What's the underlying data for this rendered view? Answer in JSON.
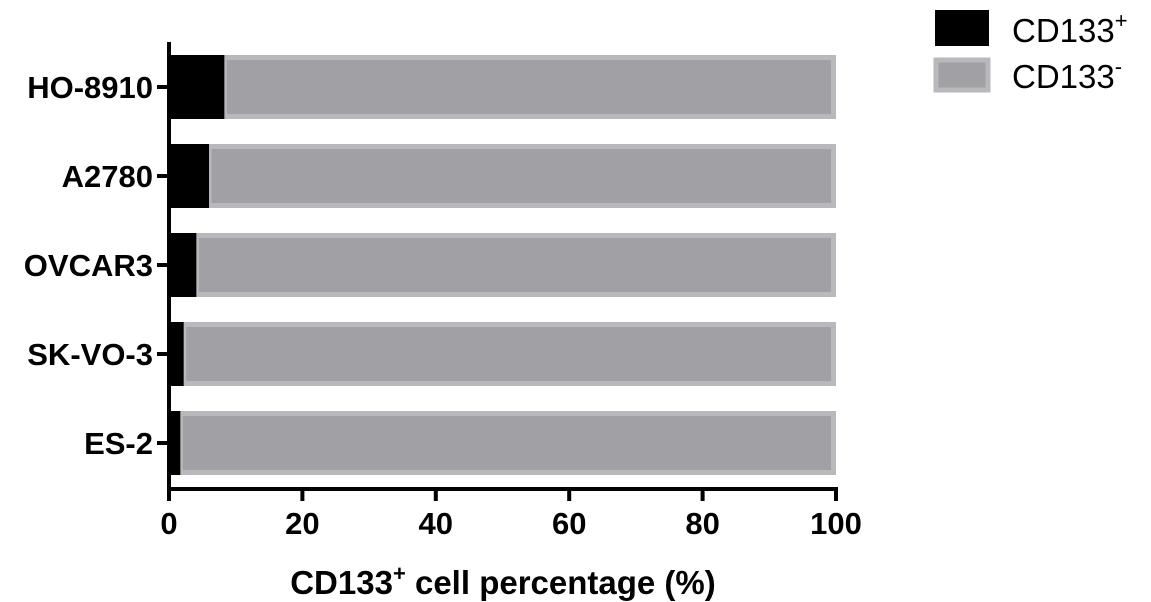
{
  "chart_data": {
    "type": "bar",
    "orientation": "horizontal",
    "stacked": true,
    "categories": [
      "HO-8910",
      "A2780",
      "OVCAR3",
      "SK-VO-3",
      "ES-2"
    ],
    "series": [
      {
        "name": "CD133",
        "name_superscript": "+",
        "color": "#000000",
        "values": [
          8.3,
          6.0,
          4.1,
          2.2,
          1.7
        ]
      },
      {
        "name": "CD133",
        "name_superscript": "-",
        "color": "#a1a0a5",
        "edge_color": "#b9b8bc",
        "values": [
          91.7,
          94.0,
          95.9,
          97.8,
          98.3
        ]
      }
    ],
    "xlabel": {
      "prefix": "CD133",
      "superscript": "+",
      "suffix": " cell percentage (%)"
    },
    "ylabel": "",
    "xlim": [
      0,
      100
    ],
    "xticks": [
      "0",
      "20",
      "40",
      "60",
      "80",
      "100"
    ],
    "grid": false,
    "legend_position": "top-right"
  }
}
